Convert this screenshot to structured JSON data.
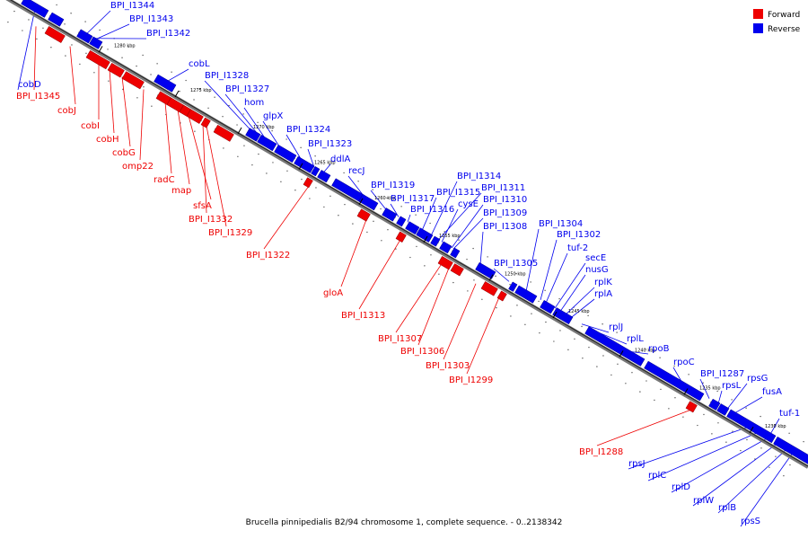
{
  "caption": "Brucella pinnipedialis B2/94 chromosome 1, complete sequence. - 0..2138342",
  "legend": [
    {
      "label": "Forward",
      "color": "#ee0000"
    },
    {
      "label": "Reverse",
      "color": "#0000ee"
    }
  ],
  "colors": {
    "forward": "#ee0000",
    "reverse": "#0000ee",
    "backbone": "#999999"
  },
  "ticks": [
    "1280 kbp",
    "1275 kbp",
    "1270 kbp",
    "1265 kbp",
    "1260 kbp",
    "1255 kbp",
    "1250 kbp",
    "1245 kbp",
    "1240 kbp",
    "1235 kbp",
    "1230 kbp"
  ],
  "reverse_labels": [
    "BPI_I1344",
    "BPI_I1343",
    "BPI_I1342",
    "cobD",
    "cobL",
    "BPI_I1328",
    "BPI_I1327",
    "hom",
    "glpX",
    "BPI_I1324",
    "BPI_I1323",
    "ddlA",
    "recJ",
    "BPI_I1319",
    "BPI_I1317",
    "BPI_I1316",
    "BPI_I1315",
    "BPI_I1314",
    "BPI_I1311",
    "cysE",
    "BPI_I1310",
    "BPI_I1309",
    "BPI_I1308",
    "BPI_I1305",
    "BPI_I1304",
    "BPI_I1302",
    "tuf-2",
    "secE",
    "nusG",
    "rplK",
    "rplA",
    "rplJ",
    "rplL",
    "rpoB",
    "rpoC",
    "BPI_I1287",
    "rpsL",
    "rpsG",
    "fusA",
    "tuf-1",
    "rpsJ",
    "rplC",
    "rplD",
    "rplW",
    "rplB",
    "rpsS"
  ],
  "forward_labels": [
    "BPI_I1345",
    "cobJ",
    "cobI",
    "cobH",
    "cobG",
    "omp22",
    "radC",
    "map",
    "sfsA",
    "BPI_I1332",
    "BPI_I1329",
    "BPI_I1322",
    "gloA",
    "BPI_I1313",
    "BPI_I1307",
    "BPI_I1306",
    "BPI_I1303",
    "BPI_I1299",
    "BPI_I1288"
  ]
}
